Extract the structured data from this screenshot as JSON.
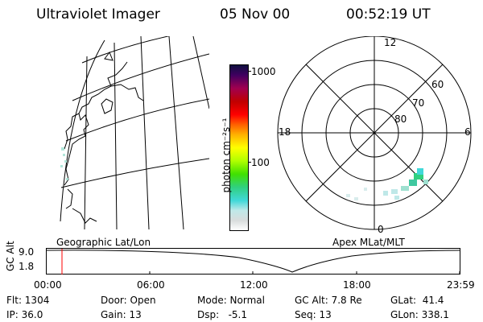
{
  "header": {
    "instrument": "Ultraviolet Imager",
    "date": "05 Nov 00",
    "time": "00:52:19 UT"
  },
  "colorbar": {
    "label": "photon cm⁻²s⁻¹",
    "tick_1000": "1000",
    "tick_100": "100"
  },
  "polar_plot": {
    "mlt_labels": {
      "top": "12",
      "left": "18",
      "right": "6",
      "bottom": "0"
    },
    "lat_labels": [
      "60",
      "70",
      "80"
    ]
  },
  "orbit_plot": {
    "left_title": "Geographic Lat/Lon",
    "right_title": "Apex MLat/MLT",
    "axis_label": "GC Alt",
    "y_ticks": [
      "9.0",
      "1.8"
    ],
    "x_ticks": [
      "00:00",
      "06:00",
      "12:00",
      "18:00",
      "23:59"
    ],
    "marker_color": "#ff0000",
    "marker_position_fraction": 0.036
  },
  "footer": {
    "row1": {
      "flt": "Flt: 1304",
      "door": "Door: Open",
      "mode": "Mode: Normal",
      "gc_alt": "GC Alt: 7.8 Re",
      "glat": "GLat:  41.4"
    },
    "row2": {
      "ip": "IP: 36.0",
      "gain": "Gain: 13",
      "dsp": "Dsp:   -5.1",
      "seq": "Seq: 13",
      "glon": "GLon: 338.1"
    }
  }
}
